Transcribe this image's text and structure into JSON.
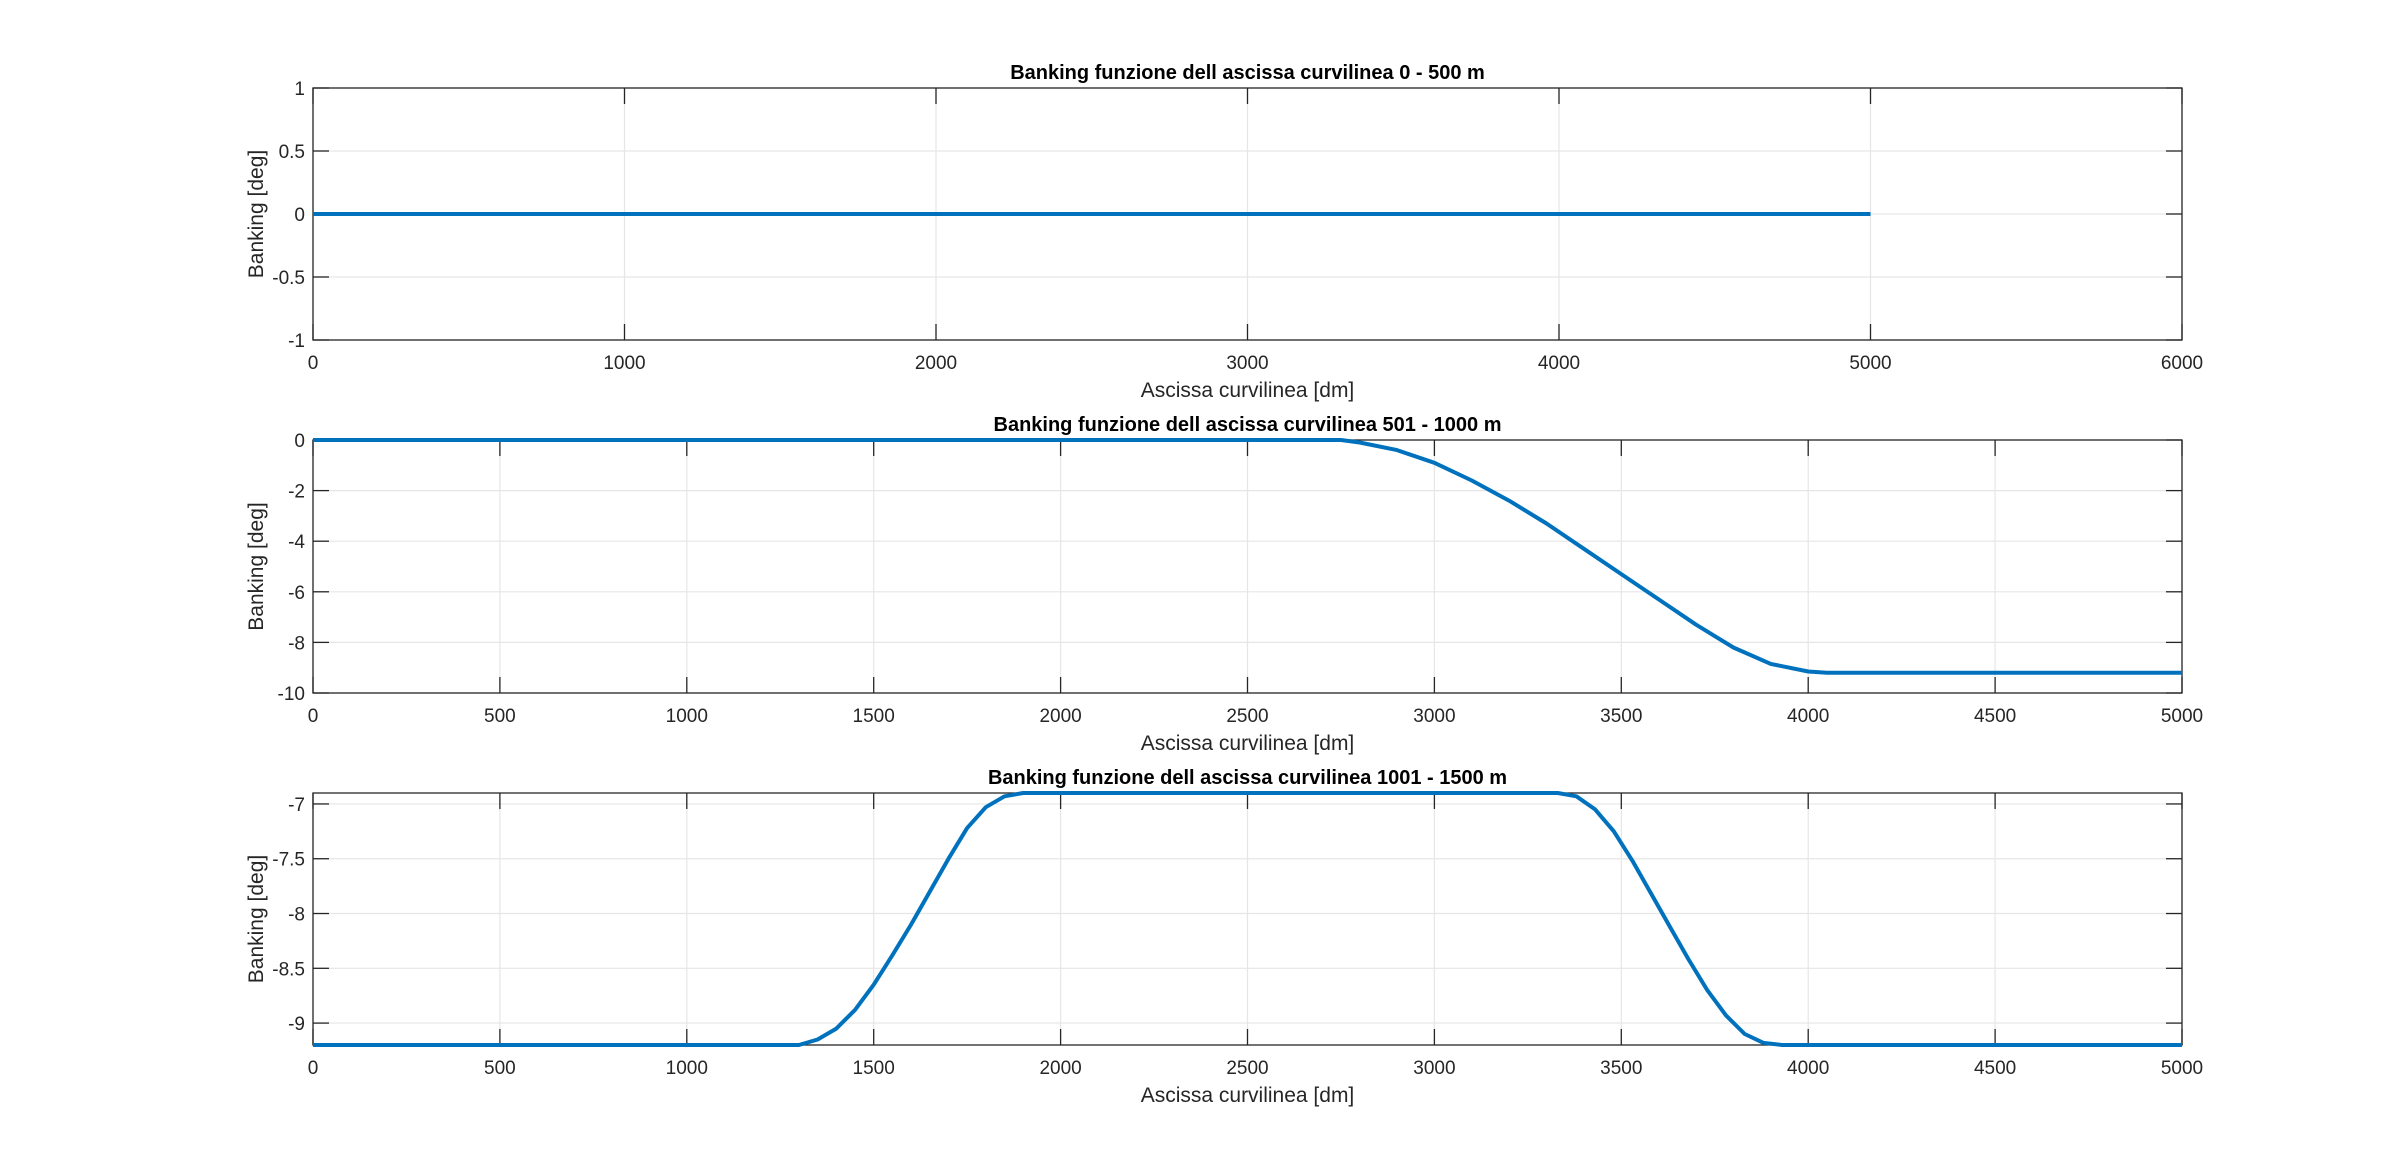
{
  "chart_data": [
    {
      "type": "line",
      "title": "Banking funzione dell ascissa curvilinea 0 - 500 m",
      "xlabel": "Ascissa curvilinea [dm]",
      "ylabel": "Banking [deg]",
      "xlim": [
        0,
        6000
      ],
      "ylim": [
        -1,
        1
      ],
      "xticks": [
        0,
        1000,
        2000,
        3000,
        4000,
        5000,
        6000
      ],
      "yticks": [
        -1,
        -0.5,
        0,
        0.5,
        1
      ],
      "grid": true,
      "color": "#0072BD",
      "series": [
        {
          "x": [
            0,
            5000
          ],
          "y": [
            0,
            0
          ]
        }
      ]
    },
    {
      "type": "line",
      "title": "Banking funzione dell ascissa curvilinea 501 - 1000 m",
      "xlabel": "Ascissa curvilinea [dm]",
      "ylabel": "Banking [deg]",
      "xlim": [
        0,
        5000
      ],
      "ylim": [
        -10,
        0
      ],
      "xticks": [
        0,
        500,
        1000,
        1500,
        2000,
        2500,
        3000,
        3500,
        4000,
        4500,
        5000
      ],
      "yticks": [
        -10,
        -8,
        -6,
        -4,
        -2,
        0
      ],
      "grid": true,
      "color": "#0072BD",
      "series": [
        {
          "x": [
            0,
            2750,
            2800,
            2900,
            3000,
            3100,
            3200,
            3300,
            3400,
            3500,
            3600,
            3700,
            3800,
            3900,
            4000,
            4050,
            5000
          ],
          "y": [
            0,
            0,
            -0.1,
            -0.4,
            -0.9,
            -1.6,
            -2.4,
            -3.3,
            -4.3,
            -5.3,
            -6.3,
            -7.3,
            -8.2,
            -8.85,
            -9.15,
            -9.2,
            -9.2
          ]
        }
      ]
    },
    {
      "type": "line",
      "title": "Banking funzione dell ascissa curvilinea 1001 - 1500 m",
      "xlabel": "Ascissa curvilinea [dm]",
      "ylabel": "Banking [deg]",
      "xlim": [
        0,
        5000
      ],
      "ylim": [
        -9.2,
        -6.9
      ],
      "xticks": [
        0,
        500,
        1000,
        1500,
        2000,
        2500,
        3000,
        3500,
        4000,
        4500,
        5000
      ],
      "ytick_labels": [
        "-7",
        "-7.5",
        "-8",
        "-8.5",
        "-9"
      ],
      "yticks": [
        -7,
        -7.5,
        -8,
        -8.5,
        -9
      ],
      "grid": true,
      "color": "#0072BD",
      "series": [
        {
          "x": [
            0,
            1300,
            1350,
            1400,
            1450,
            1500,
            1550,
            1600,
            1650,
            1700,
            1750,
            1800,
            1850,
            1900,
            3330,
            3380,
            3430,
            3480,
            3530,
            3580,
            3630,
            3680,
            3730,
            3780,
            3830,
            3880,
            3930,
            5000
          ],
          "y": [
            -9.2,
            -9.2,
            -9.15,
            -9.05,
            -8.88,
            -8.65,
            -8.38,
            -8.1,
            -7.8,
            -7.5,
            -7.22,
            -7.03,
            -6.93,
            -6.9,
            -6.9,
            -6.93,
            -7.05,
            -7.25,
            -7.52,
            -7.82,
            -8.12,
            -8.42,
            -8.7,
            -8.93,
            -9.1,
            -9.18,
            -9.2,
            -9.2
          ]
        }
      ]
    }
  ]
}
